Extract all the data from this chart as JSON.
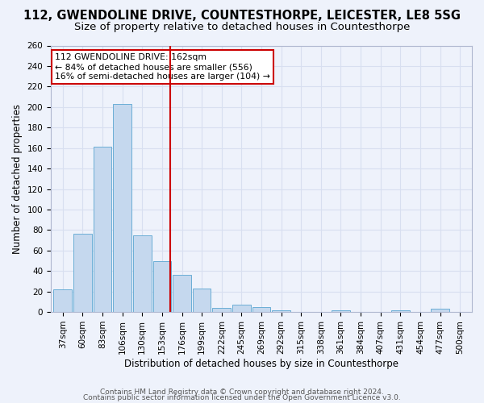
{
  "title": "112, GWENDOLINE DRIVE, COUNTESTHORPE, LEICESTER, LE8 5SG",
  "subtitle": "Size of property relative to detached houses in Countesthorpe",
  "xlabel": "Distribution of detached houses by size in Countesthorpe",
  "ylabel": "Number of detached properties",
  "footer_line1": "Contains HM Land Registry data © Crown copyright and database right 2024.",
  "footer_line2": "Contains public sector information licensed under the Open Government Licence v3.0.",
  "bin_labels": [
    "37sqm",
    "60sqm",
    "83sqm",
    "106sqm",
    "130sqm",
    "153sqm",
    "176sqm",
    "199sqm",
    "222sqm",
    "245sqm",
    "269sqm",
    "292sqm",
    "315sqm",
    "338sqm",
    "361sqm",
    "384sqm",
    "407sqm",
    "431sqm",
    "454sqm",
    "477sqm",
    "500sqm"
  ],
  "bar_values": [
    22,
    76,
    161,
    203,
    75,
    50,
    36,
    23,
    4,
    7,
    5,
    2,
    0,
    0,
    2,
    0,
    0,
    2,
    0,
    3,
    0
  ],
  "bar_color": "#c5d8ee",
  "bar_edge_color": "#6baed6",
  "vline_color": "#cc0000",
  "annotation_text": "112 GWENDOLINE DRIVE: 162sqm\n← 84% of detached houses are smaller (556)\n16% of semi-detached houses are larger (104) →",
  "annotation_box_color": "#ffffff",
  "annotation_box_edge_color": "#cc0000",
  "ylim": [
    0,
    260
  ],
  "yticks": [
    0,
    20,
    40,
    60,
    80,
    100,
    120,
    140,
    160,
    180,
    200,
    220,
    240,
    260
  ],
  "background_color": "#eef2fb",
  "grid_color": "#d8dff0",
  "title_fontsize": 10.5,
  "subtitle_fontsize": 9.5,
  "axis_label_fontsize": 8.5,
  "tick_fontsize": 7.5,
  "footer_fontsize": 6.5
}
